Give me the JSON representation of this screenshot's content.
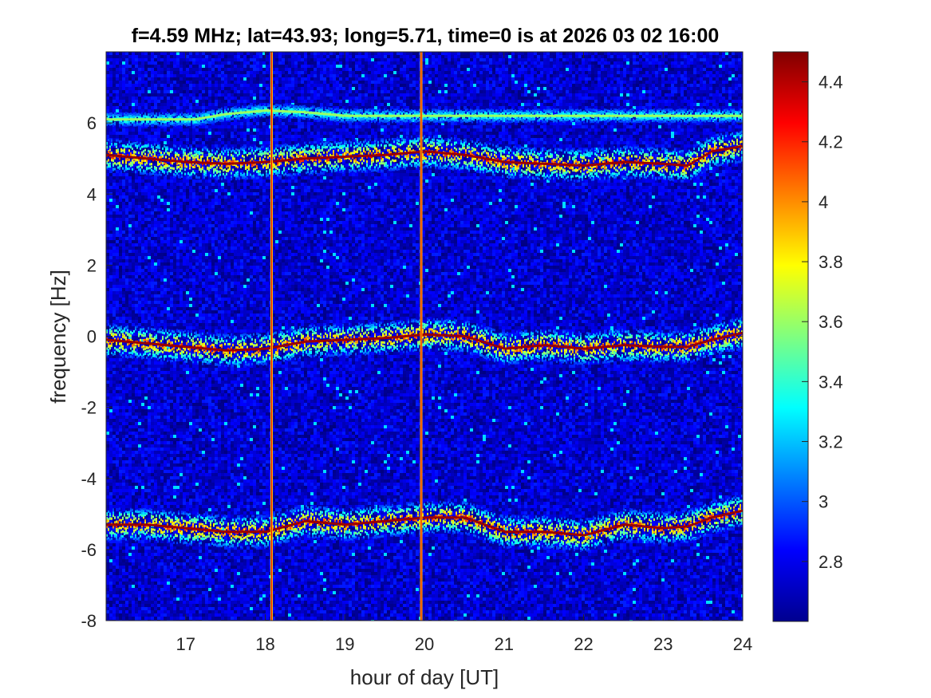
{
  "chart_data": {
    "type": "heatmap",
    "title": "f=4.59 MHz;  lat=43.93; long=5.71, time=0 is at 2026 03 02 16:00",
    "xlabel": "hour of day [UT]",
    "ylabel": "frequency [Hz]",
    "xlim": [
      16.0,
      24.0
    ],
    "ylim": [
      -8,
      8
    ],
    "xticks": [
      17,
      18,
      19,
      20,
      21,
      22,
      23,
      24
    ],
    "xtick_labels": [
      "17",
      "18",
      "19",
      "20",
      "21",
      "22",
      "23",
      "24"
    ],
    "yticks": [
      -8,
      -6,
      -4,
      -2,
      0,
      2,
      4,
      6
    ],
    "ytick_labels": [
      "-8",
      "-6",
      "-4",
      "-2",
      "0",
      "2",
      "4",
      "6"
    ],
    "colorbar": {
      "limits": [
        2.6,
        4.5
      ],
      "ticks": [
        2.8,
        3,
        3.2,
        3.4,
        3.6,
        3.8,
        4,
        4.2,
        4.4
      ],
      "tick_labels": [
        "2.8",
        "3",
        "3.2",
        "3.4",
        "3.6",
        "3.8",
        "4",
        "4.2",
        "4.4"
      ],
      "colormap": "jet"
    },
    "background_level": 2.75,
    "traces": [
      {
        "offset_hz": 0,
        "points": [
          [
            16.0,
            -0.1
          ],
          [
            16.5,
            -0.2
          ],
          [
            17.0,
            -0.3
          ],
          [
            17.5,
            -0.4
          ],
          [
            18.0,
            -0.35
          ],
          [
            18.5,
            -0.15
          ],
          [
            19.0,
            -0.1
          ],
          [
            19.5,
            -0.05
          ],
          [
            20.0,
            0.05
          ],
          [
            20.5,
            0.0
          ],
          [
            21.0,
            -0.35
          ],
          [
            21.5,
            -0.25
          ],
          [
            22.0,
            -0.35
          ],
          [
            22.5,
            -0.25
          ],
          [
            23.0,
            -0.3
          ],
          [
            23.3,
            -0.3
          ],
          [
            23.6,
            -0.1
          ],
          [
            24.0,
            0.1
          ]
        ]
      },
      {
        "offset_hz": 5.2,
        "points": [
          [
            16.0,
            5.1
          ],
          [
            16.5,
            5.0
          ],
          [
            17.0,
            4.9
          ],
          [
            17.5,
            4.85
          ],
          [
            18.0,
            4.9
          ],
          [
            18.5,
            5.0
          ],
          [
            19.0,
            5.05
          ],
          [
            19.5,
            5.1
          ],
          [
            20.0,
            5.2
          ],
          [
            20.5,
            5.1
          ],
          [
            21.0,
            4.9
          ],
          [
            21.5,
            4.85
          ],
          [
            22.0,
            4.8
          ],
          [
            22.5,
            4.9
          ],
          [
            23.0,
            4.85
          ],
          [
            23.3,
            4.8
          ],
          [
            23.6,
            5.2
          ],
          [
            24.0,
            5.35
          ]
        ]
      },
      {
        "offset_hz": -5.2,
        "points": [
          [
            16.0,
            -5.3
          ],
          [
            16.5,
            -5.3
          ],
          [
            17.0,
            -5.4
          ],
          [
            17.5,
            -5.5
          ],
          [
            18.0,
            -5.5
          ],
          [
            18.5,
            -5.2
          ],
          [
            19.0,
            -5.3
          ],
          [
            19.5,
            -5.2
          ],
          [
            20.0,
            -5.1
          ],
          [
            20.5,
            -5.1
          ],
          [
            21.0,
            -5.5
          ],
          [
            21.5,
            -5.5
          ],
          [
            22.0,
            -5.6
          ],
          [
            22.5,
            -5.3
          ],
          [
            23.0,
            -5.4
          ],
          [
            23.3,
            -5.35
          ],
          [
            23.6,
            -5.1
          ],
          [
            24.0,
            -4.9
          ]
        ]
      }
    ],
    "faint_trace": {
      "points": [
        [
          17.1,
          6.1
        ],
        [
          17.5,
          6.25
        ],
        [
          18.0,
          6.35
        ],
        [
          18.5,
          6.3
        ],
        [
          19.0,
          6.2
        ]
      ]
    },
    "vertical_lines": [
      {
        "x": 18.08,
        "level": "high"
      },
      {
        "x": 19.96,
        "level": "high"
      }
    ]
  }
}
